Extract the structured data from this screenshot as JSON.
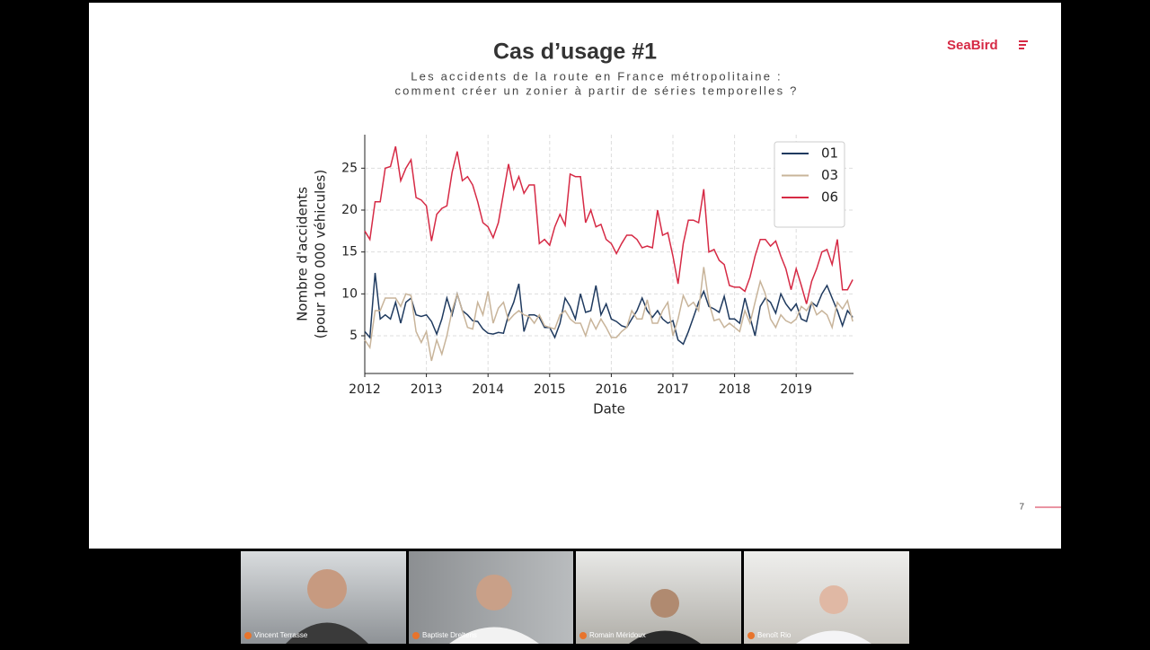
{
  "slide": {
    "title": "Cas d’usage #1",
    "subtitle": [
      "Les accidents de la route en France métropolitaine :",
      "comment créer un zonier à partir de séries temporelles ?"
    ],
    "logo": "SeaBird",
    "page_number": "7"
  },
  "participants": [
    "Vincent Terrasse",
    "Baptiste Dreltens",
    "Romain Méridoux",
    "Benoît Rio"
  ],
  "chart_data": {
    "type": "line",
    "xlabel": "Date",
    "ylabel": [
      "Nombre d'accidents",
      "(pour 100 000 véhicules)"
    ],
    "x": [
      2012,
      2012.083,
      2012.167,
      2012.25,
      2012.333,
      2012.417,
      2012.5,
      2012.583,
      2012.667,
      2012.75,
      2012.833,
      2012.917,
      2013,
      2013.083,
      2013.167,
      2013.25,
      2013.333,
      2013.417,
      2013.5,
      2013.583,
      2013.667,
      2013.75,
      2013.833,
      2013.917,
      2014,
      2014.083,
      2014.167,
      2014.25,
      2014.333,
      2014.417,
      2014.5,
      2014.583,
      2014.667,
      2014.75,
      2014.833,
      2014.917,
      2015,
      2015.083,
      2015.167,
      2015.25,
      2015.333,
      2015.417,
      2015.5,
      2015.583,
      2015.667,
      2015.75,
      2015.833,
      2015.917,
      2016,
      2016.083,
      2016.167,
      2016.25,
      2016.333,
      2016.417,
      2016.5,
      2016.583,
      2016.667,
      2016.75,
      2016.833,
      2016.917,
      2017,
      2017.083,
      2017.167,
      2017.25,
      2017.333,
      2017.417,
      2017.5,
      2017.583,
      2017.667,
      2017.75,
      2017.833,
      2017.917,
      2018,
      2018.083,
      2018.167,
      2018.25,
      2018.333,
      2018.417,
      2018.5,
      2018.583,
      2018.667,
      2018.75,
      2018.833,
      2018.917,
      2019,
      2019.083,
      2019.167,
      2019.25,
      2019.333,
      2019.417,
      2019.5,
      2019.583,
      2019.667,
      2019.75,
      2019.833,
      2019.917
    ],
    "series": [
      {
        "name": "01",
        "color": "#1f3a5f",
        "values": [
          5.5,
          4.8,
          12.5,
          7,
          7.5,
          7,
          9,
          6.5,
          9,
          9.5,
          7.5,
          7.3,
          7.5,
          6.7,
          5.2,
          7,
          9.5,
          7.5,
          10,
          8,
          7.5,
          6.8,
          6.7,
          5.8,
          5.3,
          5.2,
          5.4,
          5.3,
          7.5,
          9,
          11.2,
          5.5,
          7.5,
          7.5,
          7.2,
          6,
          6,
          4.8,
          6.5,
          9.5,
          8.5,
          7,
          10,
          7.8,
          8,
          11,
          7.5,
          8.8,
          7,
          6.7,
          6.2,
          6,
          7,
          8,
          9.5,
          8,
          7.2,
          8,
          7,
          6.5,
          6.8,
          4.5,
          4,
          5.5,
          7.2,
          9,
          10.3,
          8.5,
          8.2,
          7.8,
          9.7,
          7,
          7,
          6.5,
          9.5,
          7.2,
          5,
          8.5,
          9.5,
          9,
          7.7,
          10,
          8.8,
          8,
          8.8,
          7,
          6.7,
          9,
          8.5,
          10,
          11,
          9.5,
          8,
          6.2,
          8,
          7.2
        ]
      },
      {
        "name": "03",
        "color": "#c8b49a",
        "values": [
          4.5,
          3.6,
          8,
          8,
          9.5,
          9.5,
          9.5,
          8.5,
          10,
          9.8,
          5.5,
          4.2,
          5.5,
          2,
          4.5,
          2.8,
          5,
          8,
          10,
          8,
          6,
          5.8,
          9,
          7.5,
          10.3,
          6.5,
          8.3,
          9,
          6.8,
          7.5,
          8,
          7.5,
          7.3,
          6.5,
          7.5,
          6.2,
          6,
          5.8,
          7.5,
          8,
          7,
          6.5,
          6.5,
          5,
          7,
          5.8,
          7,
          6,
          4.8,
          4.8,
          5.5,
          6,
          8,
          7,
          7,
          9.3,
          6.5,
          6.5,
          8,
          9,
          5,
          7,
          9.8,
          8.5,
          9,
          8,
          13.2,
          9,
          6.8,
          7,
          6,
          6.5,
          6,
          5.5,
          8,
          6.5,
          9,
          11.5,
          10,
          7,
          6,
          7.5,
          6.8,
          6.5,
          7,
          8.5,
          8,
          9,
          7.5,
          8,
          7.5,
          6,
          9,
          8.2,
          9.2,
          6.7
        ]
      },
      {
        "name": "06",
        "color": "#d62a45",
        "values": [
          17.5,
          16.5,
          21,
          21,
          25,
          25.2,
          27.6,
          23.5,
          25,
          26,
          21.5,
          21.2,
          20.5,
          16.3,
          19.5,
          20.2,
          20.5,
          24.5,
          27,
          23.5,
          24,
          23,
          21,
          18.5,
          18,
          16.7,
          18.5,
          22,
          25.5,
          22.5,
          24,
          22,
          23,
          23,
          16,
          16.5,
          15.8,
          18,
          19.5,
          18.2,
          24.3,
          24,
          24,
          18.5,
          20,
          18,
          18.3,
          16.5,
          16,
          14.8,
          16,
          17,
          17,
          16.5,
          15.5,
          15.7,
          15.5,
          20,
          17,
          17.3,
          14.5,
          11.2,
          16,
          18.8,
          18.8,
          18.5,
          22.5,
          15,
          15.3,
          14,
          13.5,
          11,
          10.8,
          10.8,
          10.3,
          12,
          14.5,
          16.5,
          16.5,
          15.7,
          16.3,
          14.5,
          13,
          10.5,
          13,
          11,
          8.8,
          11.5,
          13,
          15,
          15.3,
          13.5,
          16.5,
          10.5,
          10.5,
          11.7
        ]
      }
    ],
    "xlim": [
      2012,
      2019.93
    ],
    "xticks": [
      2012,
      2013,
      2014,
      2015,
      2016,
      2017,
      2018,
      2019
    ],
    "ylim": [
      0.5,
      29
    ],
    "yticks": [
      5,
      10,
      15,
      20,
      25
    ],
    "grid": true,
    "legend": "upper right"
  }
}
